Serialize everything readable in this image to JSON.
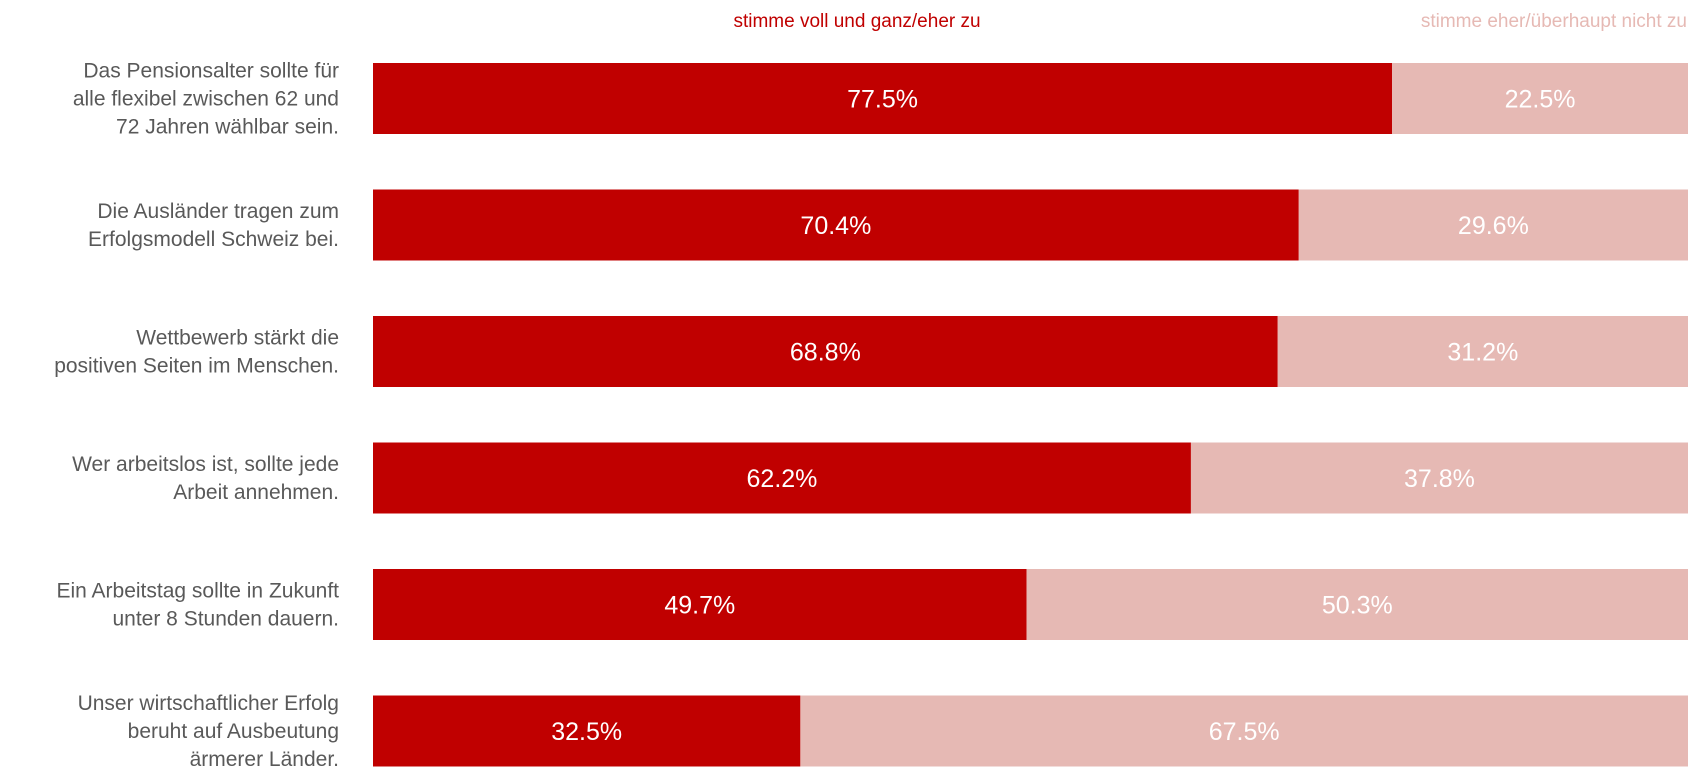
{
  "chart_data": {
    "type": "bar",
    "orientation": "horizontal",
    "stacked": true,
    "normalized_to": 100,
    "categories": [
      [
        "Das Pensionsalter sollte für",
        "alle flexibel zwischen 62 und",
        "72 Jahren wählbar sein."
      ],
      [
        "Die Ausländer tragen zum",
        "Erfolgsmodell Schweiz bei."
      ],
      [
        "Wettbewerb stärkt die",
        "positiven Seiten im Menschen."
      ],
      [
        "Wer arbeitslos ist, sollte jede",
        "Arbeit annehmen."
      ],
      [
        "Ein Arbeitstag sollte in Zukunft",
        "unter 8 Stunden dauern."
      ],
      [
        "Unser wirtschaftlicher Erfolg",
        "beruht auf Ausbeutung",
        "ärmerer Länder."
      ]
    ],
    "series": [
      {
        "name": "stimme voll und ganz/eher  zu",
        "color": "#c00000",
        "values": [
          77.5,
          70.4,
          68.8,
          62.2,
          49.7,
          32.5
        ],
        "labels": [
          "77.5%",
          "70.4%",
          "68.8%",
          "62.2%",
          "49.7%",
          "32.5%"
        ]
      },
      {
        "name": "stimme eher/überhaupt nicht zu",
        "color": "#e6b9b4",
        "values": [
          22.5,
          29.6,
          31.2,
          37.8,
          50.3,
          67.5
        ],
        "labels": [
          "22.5%",
          "29.6%",
          "31.2%",
          "37.8%",
          "50.3%",
          "67.5%"
        ]
      }
    ],
    "xlim": [
      0,
      100
    ],
    "legend_position": "top",
    "grid": false
  }
}
